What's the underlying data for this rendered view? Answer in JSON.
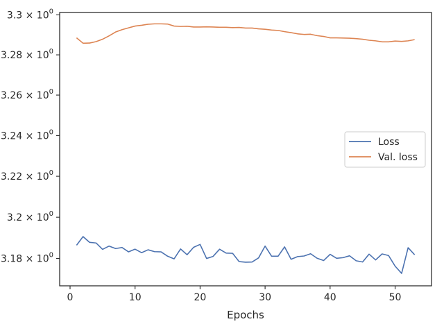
{
  "chart_data": {
    "type": "line",
    "title": "",
    "xlabel": "Epochs",
    "ylabel": "",
    "yscale": "log",
    "xlim": [
      -1.6,
      55.6
    ],
    "ylim": [
      3.1668,
      3.3012
    ],
    "grid": false,
    "legend_position": "center-right",
    "x_ticks": [
      0,
      10,
      20,
      30,
      40,
      50
    ],
    "x_tick_labels": [
      "0",
      "10",
      "20",
      "30",
      "40",
      "50"
    ],
    "y_ticks": [
      3.18,
      3.2,
      3.22,
      3.24,
      3.26,
      3.28,
      3.3
    ],
    "y_tick_labels": [
      "3.18 × 10⁰",
      "3.2 × 10⁰",
      "3.22 × 10⁰",
      "3.24 × 10⁰",
      "3.26 × 10⁰",
      "3.28 × 10⁰",
      "3.3 × 10⁰"
    ],
    "x": [
      1,
      2,
      3,
      4,
      5,
      6,
      7,
      8,
      9,
      10,
      11,
      12,
      13,
      14,
      15,
      16,
      17,
      18,
      19,
      20,
      21,
      22,
      23,
      24,
      25,
      26,
      27,
      28,
      29,
      30,
      31,
      32,
      33,
      34,
      35,
      36,
      37,
      38,
      39,
      40,
      41,
      42,
      43,
      44,
      45,
      46,
      47,
      48,
      49,
      50,
      51,
      52,
      53
    ],
    "series": [
      {
        "name": "Loss",
        "color": "#4c72b0",
        "values": [
          3.1864,
          3.1906,
          3.1878,
          3.1875,
          3.1844,
          3.186,
          3.1848,
          3.1853,
          3.1832,
          3.1845,
          3.1828,
          3.1842,
          3.1833,
          3.1832,
          3.1811,
          3.1798,
          3.1846,
          3.1818,
          3.1854,
          3.1868,
          3.18,
          3.181,
          3.1845,
          3.1826,
          3.1825,
          3.1785,
          3.1782,
          3.1783,
          3.1803,
          3.186,
          3.1811,
          3.1811,
          3.1856,
          3.1796,
          3.1809,
          3.1812,
          3.1823,
          3.1801,
          3.179,
          3.182,
          3.1801,
          3.1804,
          3.1813,
          3.1789,
          3.1783,
          3.1821,
          3.1793,
          3.1822,
          3.1814,
          3.1763,
          3.1728,
          3.1852,
          3.1818
        ]
      },
      {
        "name": "Val. loss",
        "color": "#dd8452",
        "values": [
          3.2885,
          3.2858,
          3.2859,
          3.2866,
          3.2878,
          3.2895,
          3.2914,
          3.2926,
          3.2935,
          3.2944,
          3.2948,
          3.2953,
          3.2955,
          3.2955,
          3.2954,
          3.2944,
          3.2942,
          3.2943,
          3.2939,
          3.2939,
          3.294,
          3.2939,
          3.2938,
          3.2938,
          3.2936,
          3.2937,
          3.2934,
          3.2934,
          3.293,
          3.2928,
          3.2924,
          3.2922,
          3.2916,
          3.2911,
          3.2905,
          3.2902,
          3.2903,
          3.2896,
          3.2892,
          3.2885,
          3.2885,
          3.2884,
          3.2883,
          3.2881,
          3.2878,
          3.2873,
          3.287,
          3.2865,
          3.2865,
          3.2869,
          3.2867,
          3.287,
          3.2876
        ]
      }
    ]
  }
}
